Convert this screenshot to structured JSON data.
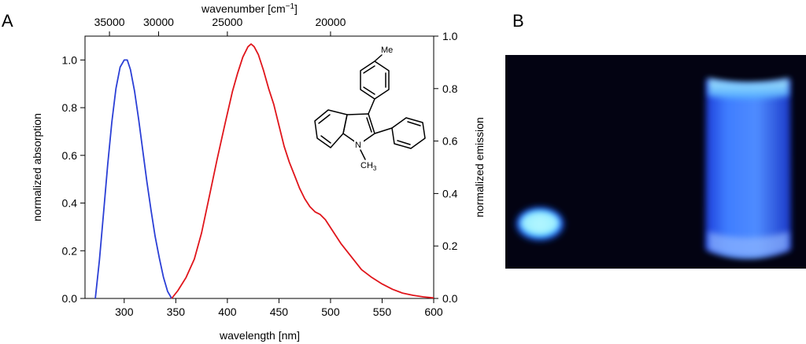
{
  "panels": {
    "a_label": "A",
    "b_label": "B"
  },
  "molecule": {
    "methyl_top": "Me",
    "nitrogen": "N",
    "n_methyl": "CH",
    "n_methyl_sub": "3"
  },
  "chart_data": {
    "type": "line",
    "xlabel": "wavelength [nm]",
    "ylabel_left": "normalized absorption",
    "ylabel_right": "normalized emission",
    "top_axis_label": "wavenumber [cm",
    "top_axis_label_sup": "−1",
    "top_axis_label_end": "]",
    "xlim": [
      262,
      600
    ],
    "ylim_left": [
      0,
      1.1
    ],
    "ylim_right": [
      0,
      1.0
    ],
    "x_ticks": [
      300,
      350,
      400,
      450,
      500,
      550,
      600
    ],
    "y_left_ticks": [
      0.0,
      0.2,
      0.4,
      0.6,
      0.8,
      1.0
    ],
    "y_right_ticks": [
      0.0,
      0.2,
      0.4,
      0.6,
      0.8,
      1.0
    ],
    "top_ticks": [
      35000,
      30000,
      25000,
      20000
    ],
    "grid": false,
    "series": [
      {
        "axis": "left",
        "color": "#2b3fd6",
        "x": [
          272,
          276,
          280,
          284,
          288,
          292,
          296,
          300,
          303,
          306,
          310,
          314,
          318,
          322,
          326,
          330,
          334,
          338,
          342,
          346
        ],
        "y": [
          0.0,
          0.16,
          0.36,
          0.56,
          0.74,
          0.88,
          0.97,
          1.0,
          1.0,
          0.96,
          0.87,
          0.75,
          0.62,
          0.49,
          0.37,
          0.26,
          0.17,
          0.09,
          0.03,
          0.0
        ]
      },
      {
        "axis": "right",
        "color": "#e0151b",
        "x": [
          346,
          352,
          360,
          368,
          375,
          382,
          390,
          398,
          405,
          410,
          415,
          420,
          423,
          426,
          430,
          435,
          440,
          445,
          450,
          455,
          460,
          465,
          470,
          475,
          480,
          485,
          490,
          495,
          500,
          510,
          520,
          530,
          540,
          550,
          560,
          570,
          580,
          590,
          600
        ],
        "y": [
          0.0,
          0.03,
          0.08,
          0.15,
          0.25,
          0.38,
          0.53,
          0.67,
          0.79,
          0.86,
          0.92,
          0.96,
          0.97,
          0.96,
          0.93,
          0.87,
          0.8,
          0.74,
          0.66,
          0.58,
          0.52,
          0.47,
          0.42,
          0.38,
          0.35,
          0.33,
          0.32,
          0.3,
          0.27,
          0.21,
          0.16,
          0.11,
          0.08,
          0.055,
          0.035,
          0.02,
          0.012,
          0.006,
          0.002
        ]
      }
    ]
  }
}
